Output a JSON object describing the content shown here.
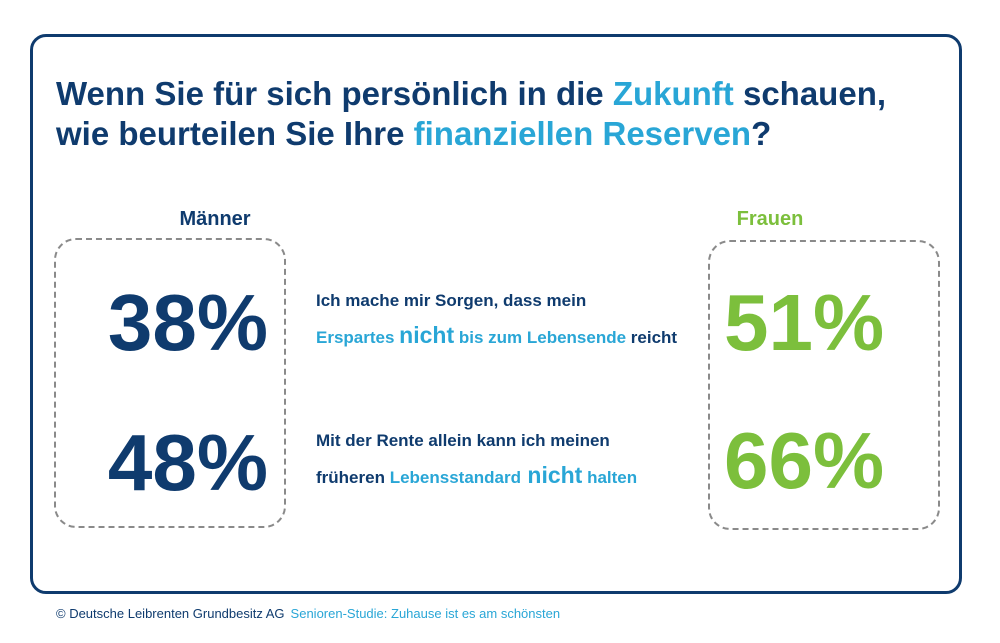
{
  "headline": {
    "line1_a": "Wenn Sie für sich persönlich in die ",
    "line1_hl": "Zukunft",
    "line1_b": " schauen,",
    "line2_a": "wie beurteilen Sie Ihre ",
    "line2_hl": "finanziellen Reserven",
    "line2_b": "?"
  },
  "columns": {
    "men_label": "Männer",
    "women_label": "Frauen"
  },
  "rows": [
    {
      "men_value": "38%",
      "women_value": "51%",
      "line1": "Ich mache mir Sorgen, dass mein",
      "line2_a": "Erspartes ",
      "line2_b": "nicht",
      "line2_c": " bis zum Lebensende",
      "line2_d": " reicht"
    },
    {
      "men_value": "48%",
      "women_value": "66%",
      "line1": "Mit der Rente allein kann ich meinen",
      "line2_a": "früheren ",
      "line2_b": "Lebensstandard",
      "line2_c": " nicht",
      "line2_d": " halten"
    }
  ],
  "footer": {
    "copyright": "© Deutsche Leibrenten Grundbesitz AG",
    "study": "Senioren-Studie: Zuhause ist es am schönsten"
  },
  "colors": {
    "navy": "#0f3b6e",
    "blue": "#29a6d6",
    "green": "#7cbf3c",
    "dash": "#8a8a8a"
  }
}
